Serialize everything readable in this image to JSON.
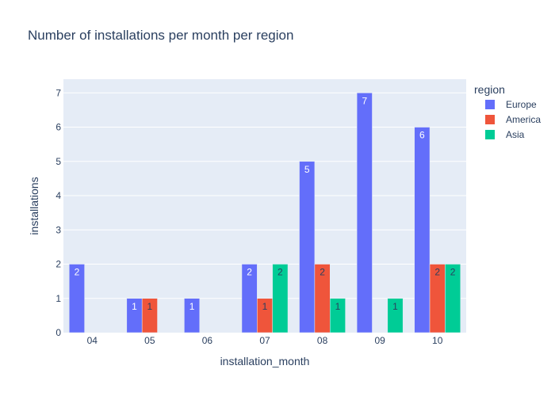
{
  "chart_data": {
    "type": "bar",
    "barmode": "group",
    "title": "Number of installations per month per region",
    "xlabel": "installation_month",
    "ylabel": "installations",
    "categories": [
      "04",
      "05",
      "06",
      "07",
      "08",
      "09",
      "10"
    ],
    "ylim": [
      0,
      7.4
    ],
    "yticks": [
      0,
      1,
      2,
      3,
      4,
      5,
      6,
      7
    ],
    "grid": true,
    "legend_title": "region",
    "legend_position": "right",
    "series": [
      {
        "name": "Europe",
        "color": "#636efa",
        "values": [
          2,
          1,
          1,
          2,
          5,
          7,
          6
        ]
      },
      {
        "name": "America",
        "color": "#ef553b",
        "values": [
          null,
          1,
          null,
          1,
          2,
          null,
          2
        ]
      },
      {
        "name": "Asia",
        "color": "#00cc96",
        "values": [
          null,
          null,
          null,
          2,
          1,
          1,
          2
        ]
      }
    ]
  }
}
